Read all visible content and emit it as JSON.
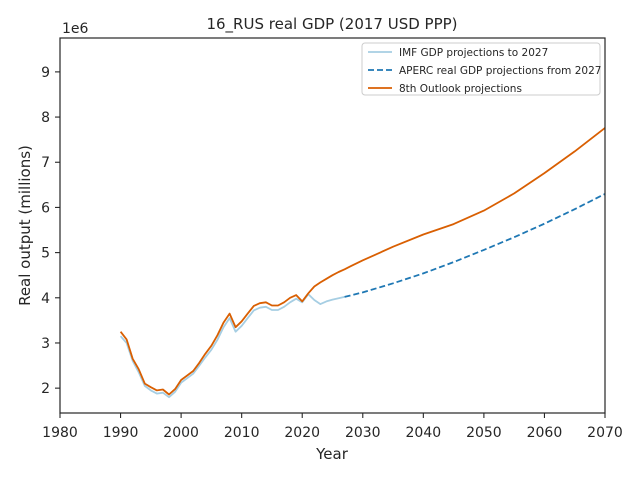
{
  "chart_data": {
    "type": "line",
    "title": "16_RUS real GDP (2017 USD PPP)",
    "xlabel": "Year",
    "ylabel": "Real output (millions)",
    "y_offset_label": "1e6",
    "xlim": [
      1980,
      2070
    ],
    "ylim": [
      1.45,
      9.75
    ],
    "xticks": [
      1980,
      1990,
      2000,
      2010,
      2020,
      2030,
      2040,
      2050,
      2060,
      2070
    ],
    "yticks": [
      2,
      3,
      4,
      5,
      6,
      7,
      8,
      9
    ],
    "legend_position": "top-right",
    "grid": false,
    "series": [
      {
        "name": "IMF GDP projections to 2027",
        "color": "#a6cee3",
        "style": "solid",
        "points": [
          [
            1990,
            3.15
          ],
          [
            1991,
            3.0
          ],
          [
            1992,
            2.6
          ],
          [
            1993,
            2.35
          ],
          [
            1994,
            2.05
          ],
          [
            1995,
            1.95
          ],
          [
            1996,
            1.88
          ],
          [
            1997,
            1.9
          ],
          [
            1998,
            1.8
          ],
          [
            1999,
            1.92
          ],
          [
            2000,
            2.12
          ],
          [
            2001,
            2.22
          ],
          [
            2002,
            2.32
          ],
          [
            2003,
            2.5
          ],
          [
            2004,
            2.68
          ],
          [
            2005,
            2.85
          ],
          [
            2006,
            3.07
          ],
          [
            2007,
            3.35
          ],
          [
            2008,
            3.55
          ],
          [
            2009,
            3.25
          ],
          [
            2010,
            3.38
          ],
          [
            2011,
            3.55
          ],
          [
            2012,
            3.72
          ],
          [
            2013,
            3.78
          ],
          [
            2014,
            3.8
          ],
          [
            2015,
            3.73
          ],
          [
            2016,
            3.73
          ],
          [
            2017,
            3.8
          ],
          [
            2018,
            3.9
          ],
          [
            2019,
            3.98
          ],
          [
            2020,
            3.9
          ],
          [
            2021,
            4.08
          ],
          [
            2022,
            3.95
          ],
          [
            2023,
            3.86
          ],
          [
            2024,
            3.92
          ],
          [
            2025,
            3.96
          ],
          [
            2026,
            3.99
          ],
          [
            2027,
            4.02
          ]
        ]
      },
      {
        "name": "APERC real GDP projections from 2027",
        "color": "#1f78b4",
        "style": "dashed",
        "points": [
          [
            2027,
            4.02
          ],
          [
            2030,
            4.12
          ],
          [
            2035,
            4.32
          ],
          [
            2040,
            4.54
          ],
          [
            2045,
            4.79
          ],
          [
            2050,
            5.06
          ],
          [
            2055,
            5.34
          ],
          [
            2060,
            5.64
          ],
          [
            2065,
            5.96
          ],
          [
            2070,
            6.3
          ]
        ]
      },
      {
        "name": "8th Outlook projections",
        "color": "#d95f02",
        "style": "solid",
        "points": [
          [
            1990,
            3.25
          ],
          [
            1991,
            3.08
          ],
          [
            1992,
            2.65
          ],
          [
            1993,
            2.42
          ],
          [
            1994,
            2.1
          ],
          [
            1995,
            2.02
          ],
          [
            1996,
            1.95
          ],
          [
            1997,
            1.97
          ],
          [
            1998,
            1.86
          ],
          [
            1999,
            1.98
          ],
          [
            2000,
            2.18
          ],
          [
            2001,
            2.28
          ],
          [
            2002,
            2.38
          ],
          [
            2003,
            2.56
          ],
          [
            2004,
            2.76
          ],
          [
            2005,
            2.94
          ],
          [
            2006,
            3.17
          ],
          [
            2007,
            3.45
          ],
          [
            2008,
            3.65
          ],
          [
            2009,
            3.35
          ],
          [
            2010,
            3.48
          ],
          [
            2011,
            3.65
          ],
          [
            2012,
            3.82
          ],
          [
            2013,
            3.88
          ],
          [
            2014,
            3.9
          ],
          [
            2015,
            3.83
          ],
          [
            2016,
            3.83
          ],
          [
            2017,
            3.9
          ],
          [
            2018,
            4.0
          ],
          [
            2019,
            4.06
          ],
          [
            2020,
            3.92
          ],
          [
            2021,
            4.1
          ],
          [
            2022,
            4.25
          ],
          [
            2023,
            4.34
          ],
          [
            2024,
            4.42
          ],
          [
            2025,
            4.5
          ],
          [
            2026,
            4.57
          ],
          [
            2027,
            4.63
          ],
          [
            2028,
            4.7
          ],
          [
            2030,
            4.83
          ],
          [
            2032,
            4.95
          ],
          [
            2035,
            5.13
          ],
          [
            2040,
            5.4
          ],
          [
            2045,
            5.63
          ],
          [
            2050,
            5.93
          ],
          [
            2055,
            6.31
          ],
          [
            2060,
            6.76
          ],
          [
            2065,
            7.24
          ],
          [
            2070,
            7.76
          ]
        ]
      }
    ]
  }
}
